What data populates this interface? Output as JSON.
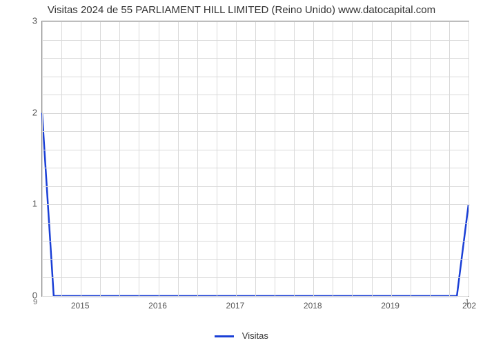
{
  "chart": {
    "type": "line",
    "title": "Visitas 2024 de 55 PARLIAMENT HILL LIMITED (Reino Unido) www.datocapital.com",
    "title_fontsize": 15,
    "title_color": "#333333",
    "background_color": "#ffffff",
    "plot_border_color": "#888888",
    "grid_color": "#d9d9d9",
    "x": {
      "min": 2014.5,
      "max": 2020.0,
      "ticks": [
        2015,
        2016,
        2017,
        2018,
        2019
      ],
      "tick_labels": [
        "2015",
        "2016",
        "2017",
        "2018",
        "2019"
      ],
      "right_clip_label": "202",
      "minor_step": 0.25,
      "tick_fontsize": 12,
      "tick_color": "#555555"
    },
    "y": {
      "min": 0,
      "max": 3,
      "ticks": [
        0,
        1,
        2,
        3
      ],
      "tick_labels": [
        "0",
        "1",
        "2",
        "3"
      ],
      "minor_step": 0.2,
      "tick_fontsize": 13,
      "tick_color": "#555555"
    },
    "corner_labels": {
      "bottom_left": "9",
      "bottom_right": "1",
      "fontsize": 11,
      "color": "#666666"
    },
    "series": [
      {
        "name": "Visitas",
        "color": "#1a3fd6",
        "line_width": 2.5,
        "points": [
          [
            2014.5,
            2.0
          ],
          [
            2014.65,
            0.0
          ],
          [
            2019.85,
            0.0
          ],
          [
            2020.0,
            1.0
          ]
        ]
      }
    ],
    "legend": {
      "label": "Visitas",
      "swatch_color": "#1a3fd6",
      "fontsize": 13,
      "color": "#333333"
    }
  }
}
